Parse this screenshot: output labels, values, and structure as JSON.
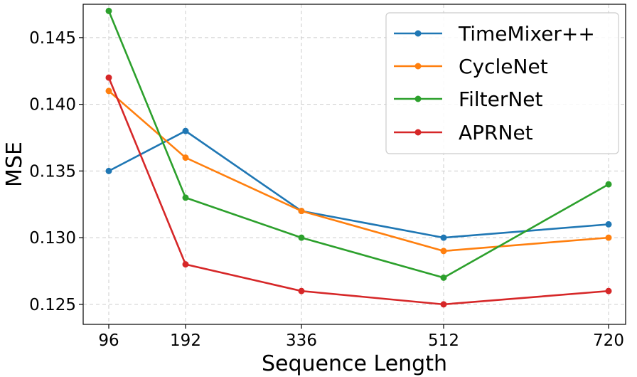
{
  "chart_data": {
    "type": "line",
    "title": "",
    "xlabel": "Sequence Length",
    "ylabel": "MSE",
    "x": [
      96,
      192,
      336,
      512,
      720
    ],
    "xticks": [
      "96",
      "192",
      "336",
      "512",
      "720"
    ],
    "ylim": [
      0.1235,
      0.1475
    ],
    "yticks": [
      0.125,
      0.13,
      0.135,
      0.14,
      0.145
    ],
    "ytick_labels": [
      "0.125",
      "0.130",
      "0.135",
      "0.140",
      "0.145"
    ],
    "grid": true,
    "legend_position": "top-right",
    "series": [
      {
        "name": "TimeMixer++",
        "color": "#1f77b4",
        "values": [
          0.135,
          0.138,
          0.132,
          0.13,
          0.131
        ]
      },
      {
        "name": "CycleNet",
        "color": "#ff7f0e",
        "values": [
          0.141,
          0.136,
          0.132,
          0.129,
          0.13
        ]
      },
      {
        "name": "FilterNet",
        "color": "#2ca02c",
        "values": [
          0.147,
          0.133,
          0.13,
          0.127,
          0.134
        ]
      },
      {
        "name": "APRNet",
        "color": "#d62728",
        "values": [
          0.142,
          0.128,
          0.126,
          0.125,
          0.126
        ]
      }
    ]
  }
}
